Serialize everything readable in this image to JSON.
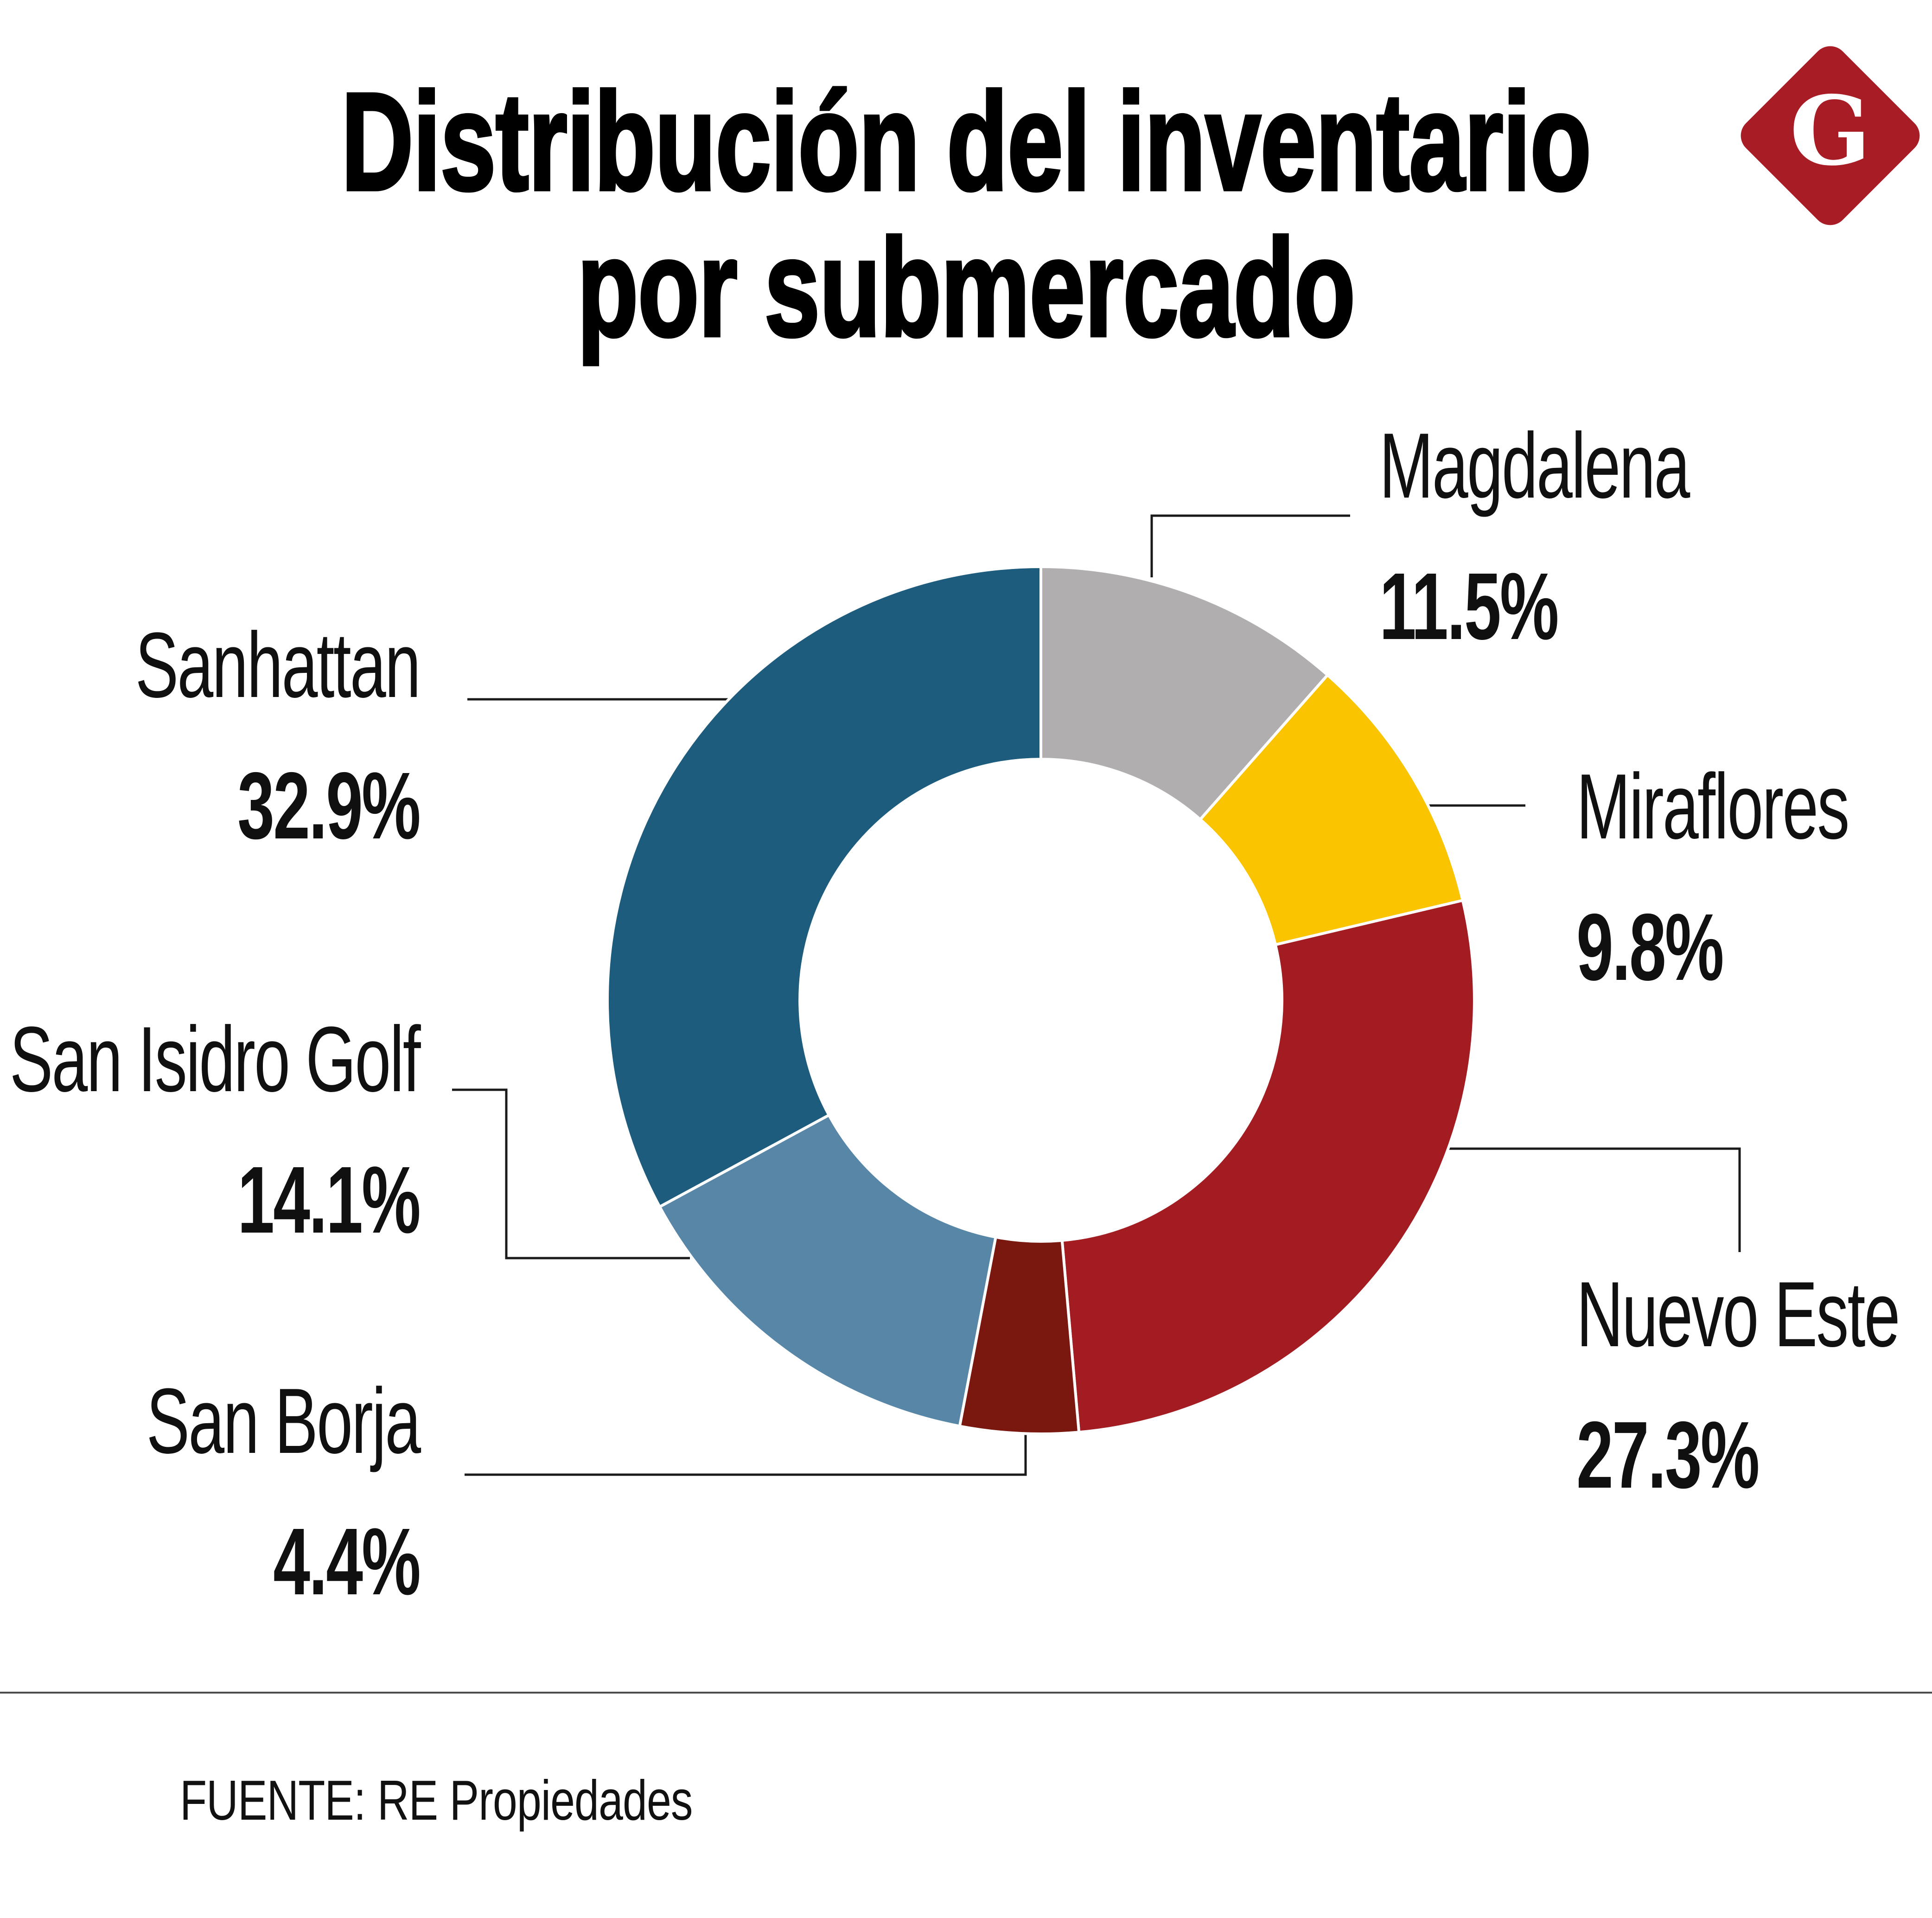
{
  "title": {
    "line1": "Distribución del inventario",
    "line2": "por submercado",
    "full": "Distribución del inventario por submercado"
  },
  "logo": {
    "letter": "G",
    "bg_color": "#A81C26"
  },
  "source": {
    "text": "FUENTE: RE Propiedades"
  },
  "chart_data": {
    "type": "pie",
    "subtype": "donut",
    "title": "Distribución del inventario por submercado",
    "categories": [
      "Magdalena",
      "Miraflores",
      "Nuevo Este",
      "San Borja",
      "San Isidro Golf",
      "Sanhattan"
    ],
    "values": [
      11.5,
      9.8,
      27.3,
      4.4,
      14.1,
      32.9
    ],
    "display_values": [
      "11.5%",
      "9.8%",
      "27.3%",
      "4.4%",
      "14.1%",
      "32.9%"
    ],
    "colors": [
      "#B1AEB0",
      "#FAC400",
      "#A21C21",
      "#7A170F",
      "#5886A6",
      "#1D5C7D"
    ],
    "segment_border_color": "#FFFFFF",
    "start_angle_deg": 0,
    "clockwise": true,
    "inner_radius_ratio": 0.556,
    "legend": "none — direct labels with leader lines",
    "units": "percent"
  }
}
